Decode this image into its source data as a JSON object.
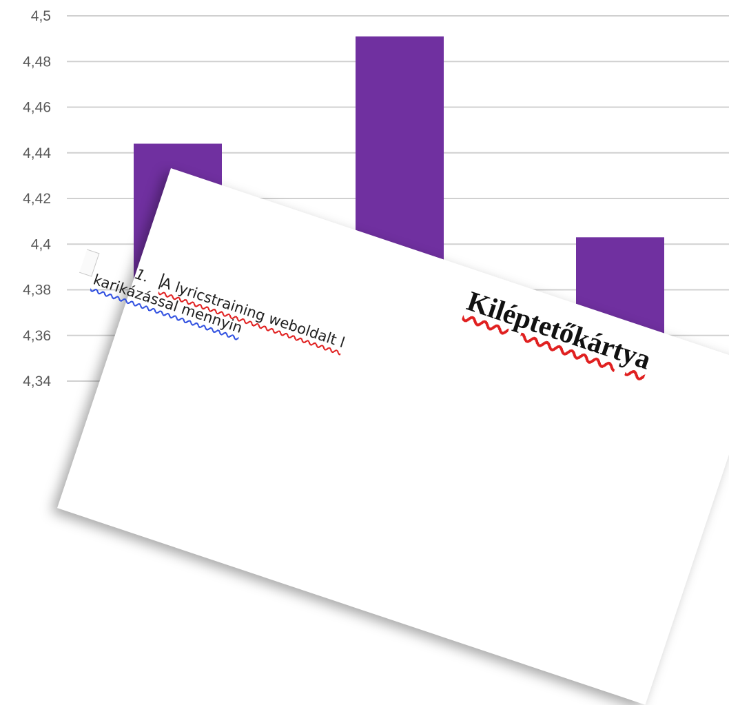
{
  "chart_data": {
    "type": "bar",
    "categories": [
      "",
      "",
      ""
    ],
    "values": [
      4.444,
      4.491,
      4.403
    ],
    "ylim": [
      4.34,
      4.5
    ],
    "yticks": [
      "4,34",
      "4,36",
      "4,38",
      "4,4",
      "4,42",
      "4,44",
      "4,46",
      "4,48",
      "4,5"
    ],
    "yticks_values": [
      4.34,
      4.36,
      4.38,
      4.4,
      4.42,
      4.44,
      4.46,
      4.48,
      4.5
    ],
    "grid": true,
    "colors": {
      "bar": "#7030a0"
    }
  },
  "document": {
    "title": "Kiléptetőkártya",
    "item_number": "1.",
    "line1": "A lyricstraining weboldalt l",
    "line2": "karikázással mennyin"
  }
}
